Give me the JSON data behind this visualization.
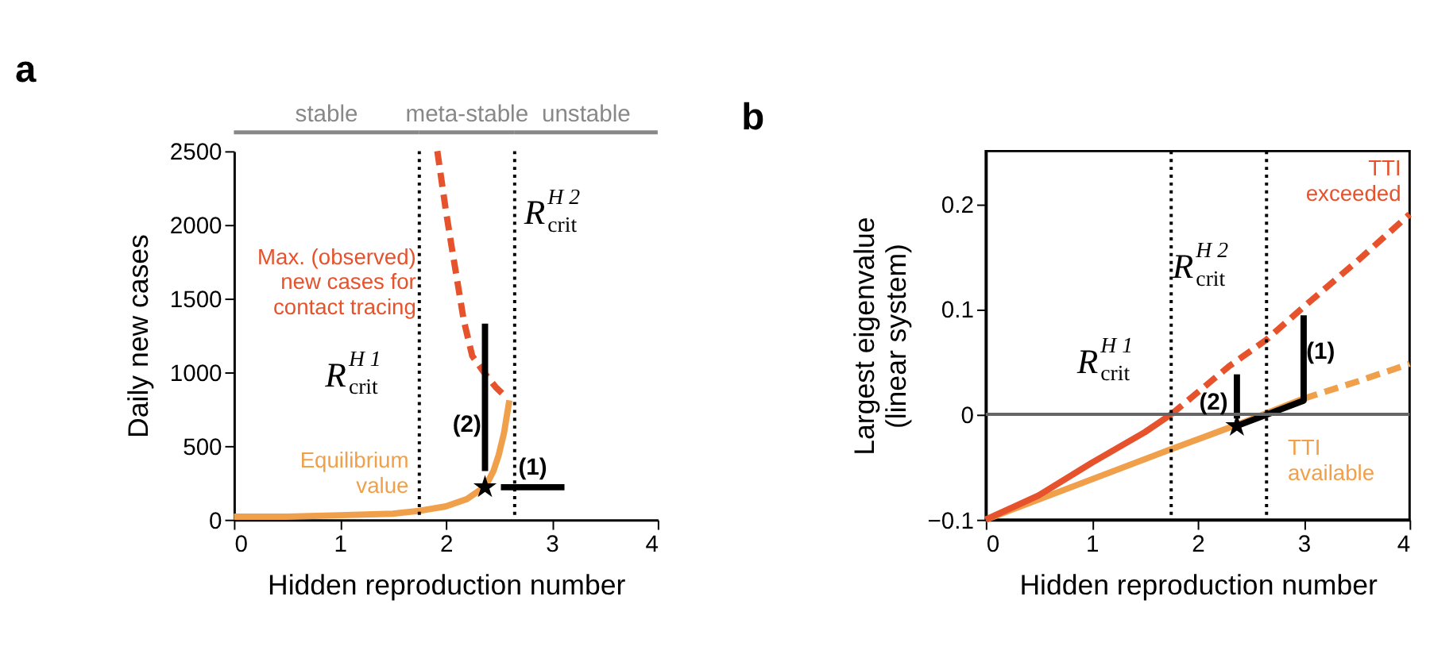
{
  "chart_data": [
    {
      "type": "line",
      "title": "a",
      "xlabel": "Hidden reproduction number",
      "ylabel": "Daily new cases",
      "xlim": [
        0,
        4
      ],
      "ylim": [
        0,
        2500
      ],
      "xticks": [
        0,
        1,
        2,
        3,
        4
      ],
      "yticks": [
        0,
        500,
        1000,
        1500,
        2000,
        2500
      ],
      "series": [
        {
          "name": "Equilibrium value",
          "color": "#f0a04b",
          "line_style": "solid",
          "x": [
            0,
            0.5,
            1,
            1.5,
            1.75,
            2,
            2.2,
            2.3,
            2.37,
            2.45,
            2.5,
            2.55,
            2.6
          ],
          "values": [
            20,
            20,
            30,
            40,
            60,
            90,
            140,
            190,
            220,
            330,
            440,
            590,
            810
          ]
        },
        {
          "name": "Max. (observed) new cases for contact tracing",
          "color": "#e6522c",
          "line_style": "dashed",
          "x": [
            1.92,
            2.0,
            2.06,
            2.17,
            2.25,
            2.37,
            2.47,
            2.57
          ],
          "values": [
            2500,
            2100,
            1830,
            1350,
            1110,
            990,
            900,
            830
          ]
        },
        {
          "color": "#000000",
          "line_style": "solid",
          "x": [
            2.37,
            2.37
          ],
          "values": [
            330,
            1330
          ]
        },
        {
          "color": "#000000",
          "line_style": "solid",
          "x": [
            2.52,
            3.12
          ],
          "values": [
            220,
            220
          ]
        },
        {
          "type": "scatter",
          "marker": "star",
          "color": "#000000",
          "x": [
            2.37
          ],
          "values": [
            220
          ]
        }
      ],
      "ref_lines": [
        {
          "axis": "x",
          "value": 1.75,
          "label": "R$^{H 1}$$_{crit}$",
          "line_style": "dotted",
          "color": "#000000"
        },
        {
          "axis": "x",
          "value": 2.65,
          "label": "R$^{H 2}$$_{crit}$",
          "line_style": "dotted",
          "color": "#000000"
        }
      ],
      "annotations": [
        "stable",
        "meta-stable",
        "unstable",
        "(2)",
        "(1)"
      ]
    },
    {
      "type": "line",
      "title": "b",
      "xlabel": "Hidden reproduction number",
      "ylabel": "Largest eigenvalue (linear system)",
      "xlim": [
        0,
        4
      ],
      "ylim": [
        -0.1,
        0.25
      ],
      "xticks": [
        0,
        1,
        2,
        3,
        4
      ],
      "yticks": [
        -0.1,
        0,
        0.1,
        0.2
      ],
      "series": [
        {
          "color": "#f0a04b",
          "line_style": "solid",
          "x": [
            0,
            1.75,
            2.37,
            3.0
          ],
          "values": [
            -0.1,
            -0.033,
            -0.01,
            0.015
          ]
        },
        {
          "name": "TTI available",
          "color": "#f0a04b",
          "line_style": "dashed",
          "x": [
            3.0,
            3.5,
            4
          ],
          "values": [
            0.015,
            0.031,
            0.048
          ]
        },
        {
          "color": "#e6522c",
          "line_style": "solid",
          "x": [
            0,
            0.5,
            1,
            1.5,
            1.75
          ],
          "values": [
            -0.1,
            -0.077,
            -0.046,
            -0.017,
            0
          ]
        },
        {
          "name": "TTI exceeded",
          "color": "#e6522c",
          "line_style": "dashed",
          "x": [
            1.75,
            2.3,
            2.65,
            3.0,
            3.5,
            4
          ],
          "values": [
            0,
            0.046,
            0.071,
            0.102,
            0.145,
            0.19
          ]
        },
        {
          "color": "#000000",
          "line_style": "solid",
          "x": [
            2.37,
            3.0,
            3.0
          ],
          "values": [
            -0.011,
            0.013,
            0.094
          ]
        },
        {
          "color": "#000000",
          "line_style": "solid",
          "x": [
            2.37,
            2.37
          ],
          "values": [
            -0.004,
            0.038
          ]
        },
        {
          "type": "scatter",
          "marker": "star",
          "color": "#000000",
          "x": [
            2.37
          ],
          "values": [
            -0.011
          ]
        }
      ],
      "ref_lines": [
        {
          "axis": "y",
          "value": 0,
          "color": "#666666",
          "line_style": "solid"
        },
        {
          "axis": "x",
          "value": 1.75,
          "label": "R$^{H 1}$$_{crit}$",
          "line_style": "dotted",
          "color": "#000000"
        },
        {
          "axis": "x",
          "value": 2.65,
          "label": "R$^{H 2}$$_{crit}$",
          "line_style": "dotted",
          "color": "#000000"
        }
      ],
      "annotations": [
        "(2)",
        "(1)"
      ]
    }
  ]
}
